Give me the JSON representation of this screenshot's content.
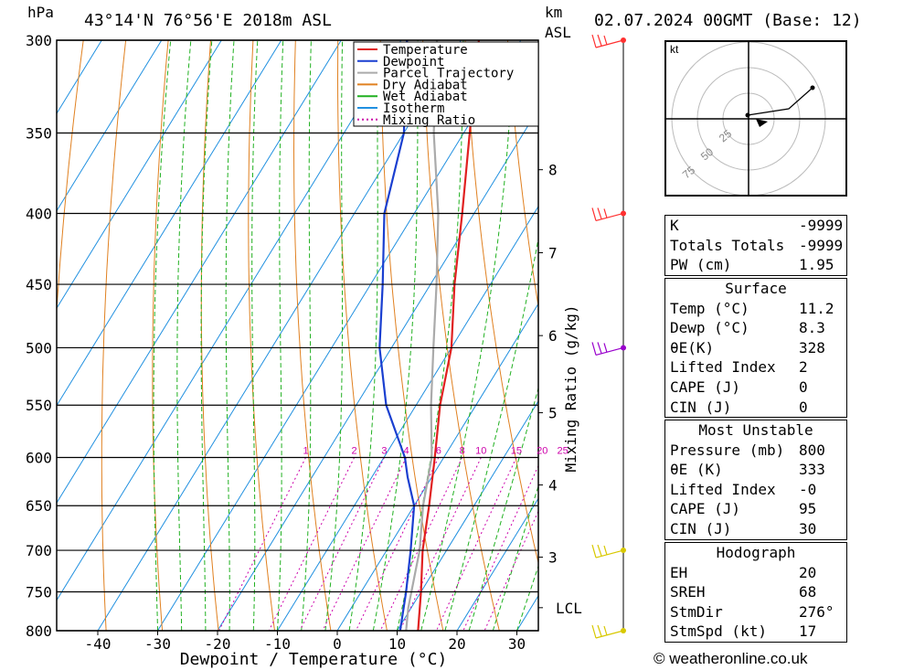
{
  "header": {
    "pressure_unit": "hPa",
    "location": "43°14'N  76°56'E  2018m  ASL",
    "km_label": "km",
    "asl_label": "ASL",
    "datetime": "02.07.2024  00GMT  (Base: 12)"
  },
  "chart_data": {
    "type": "skew-t log-p",
    "xlabel": "Dewpoint / Temperature (°C)",
    "ylabel_left": "hPa",
    "ylabel_right": "Mixing Ratio (g/kg)",
    "pressure_levels": [
      300,
      350,
      400,
      450,
      500,
      550,
      600,
      650,
      700,
      750,
      800
    ],
    "temperature_ticks": [
      -40,
      -30,
      -20,
      -10,
      0,
      10,
      20,
      30
    ],
    "height_km_ticks": [
      {
        "km": "8",
        "p": 372
      },
      {
        "km": "7",
        "p": 427
      },
      {
        "km": "6",
        "p": 490
      },
      {
        "km": "5",
        "p": 557
      },
      {
        "km": "4",
        "p": 628
      },
      {
        "km": "3",
        "p": 708
      }
    ],
    "lcl_label": "LCL",
    "lcl_pressure": 770,
    "mixing_ratio_labels": [
      "1",
      "2",
      "3",
      "4",
      "6",
      "8",
      "10",
      "15",
      "20",
      "25"
    ],
    "legend": [
      {
        "name": "Temperature",
        "color": "#e02020"
      },
      {
        "name": "Dewpoint",
        "color": "#1a3fd0"
      },
      {
        "name": "Parcel Trajectory",
        "color": "#aaaaaa"
      },
      {
        "name": "Dry Adiabat",
        "color": "#e08020"
      },
      {
        "name": "Wet Adiabat",
        "color": "#20b020"
      },
      {
        "name": "Isotherm",
        "color": "#2090e0"
      },
      {
        "name": "Mixing Ratio",
        "color": "#cc00aa"
      }
    ],
    "temperature_profile": [
      {
        "p": 800,
        "t": 13.5
      },
      {
        "p": 750,
        "t": 10.0
      },
      {
        "p": 700,
        "t": 6.0
      },
      {
        "p": 650,
        "t": 2.5
      },
      {
        "p": 600,
        "t": -1.5
      },
      {
        "p": 550,
        "t": -6.0
      },
      {
        "p": 500,
        "t": -10.0
      },
      {
        "p": 450,
        "t": -16.0
      },
      {
        "p": 400,
        "t": -22.0
      },
      {
        "p": 350,
        "t": -29.0
      },
      {
        "p": 300,
        "t": -37.0
      }
    ],
    "dewpoint_profile": [
      {
        "p": 800,
        "t": 10.5
      },
      {
        "p": 750,
        "t": 7.5
      },
      {
        "p": 700,
        "t": 4.0
      },
      {
        "p": 650,
        "t": 0.0
      },
      {
        "p": 620,
        "t": -4.0
      },
      {
        "p": 600,
        "t": -6.5
      },
      {
        "p": 550,
        "t": -15.0
      },
      {
        "p": 500,
        "t": -22.0
      },
      {
        "p": 450,
        "t": -28.0
      },
      {
        "p": 400,
        "t": -35.0
      },
      {
        "p": 350,
        "t": -40.0
      },
      {
        "p": 300,
        "t": -49.0
      }
    ],
    "parcel_profile": [
      {
        "p": 800,
        "t": 11.5
      },
      {
        "p": 770,
        "t": 9.5
      },
      {
        "p": 700,
        "t": 5.5
      },
      {
        "p": 650,
        "t": 1.5
      },
      {
        "p": 600,
        "t": -2.0
      },
      {
        "p": 550,
        "t": -7.5
      },
      {
        "p": 500,
        "t": -13.0
      },
      {
        "p": 450,
        "t": -19.0
      },
      {
        "p": 400,
        "t": -26.0
      },
      {
        "p": 350,
        "t": -35.0
      },
      {
        "p": 300,
        "t": -44.0
      }
    ],
    "wind_barbs": [
      {
        "p": 300,
        "color": "#ff3030"
      },
      {
        "p": 400,
        "color": "#ff3030"
      },
      {
        "p": 500,
        "color": "#9900cc"
      },
      {
        "p": 700,
        "color": "#d8c800"
      },
      {
        "p": 800,
        "color": "#d8c800"
      }
    ]
  },
  "hodograph": {
    "unit": "kt",
    "rings": [
      "25",
      "50",
      "75"
    ]
  },
  "indices": [
    {
      "label": "K",
      "value": "-9999"
    },
    {
      "label": "Totals Totals",
      "value": "-9999"
    },
    {
      "label": "PW (cm)",
      "value": "1.95"
    }
  ],
  "surface": {
    "title": "Surface",
    "rows": [
      {
        "label": "Temp (°C)",
        "value": "11.2"
      },
      {
        "label": "Dewp (°C)",
        "value": "8.3"
      },
      {
        "label": "θE(K)",
        "value": "328"
      },
      {
        "label": "Lifted Index",
        "value": "2"
      },
      {
        "label": "CAPE (J)",
        "value": "0"
      },
      {
        "label": "CIN (J)",
        "value": "0"
      }
    ]
  },
  "most_unstable": {
    "title": "Most Unstable",
    "rows": [
      {
        "label": "Pressure (mb)",
        "value": "800"
      },
      {
        "label": "θE (K)",
        "value": "333"
      },
      {
        "label": "Lifted Index",
        "value": "-0"
      },
      {
        "label": "CAPE (J)",
        "value": "95"
      },
      {
        "label": "CIN (J)",
        "value": "30"
      }
    ]
  },
  "hodograph_params": {
    "title": "Hodograph",
    "rows": [
      {
        "label": "EH",
        "value": "20"
      },
      {
        "label": "SREH",
        "value": "68"
      },
      {
        "label": "StmDir",
        "value": "276°"
      },
      {
        "label": "StmSpd (kt)",
        "value": "17"
      }
    ]
  },
  "footer": {
    "copyright": "© weatheronline.co.uk"
  }
}
